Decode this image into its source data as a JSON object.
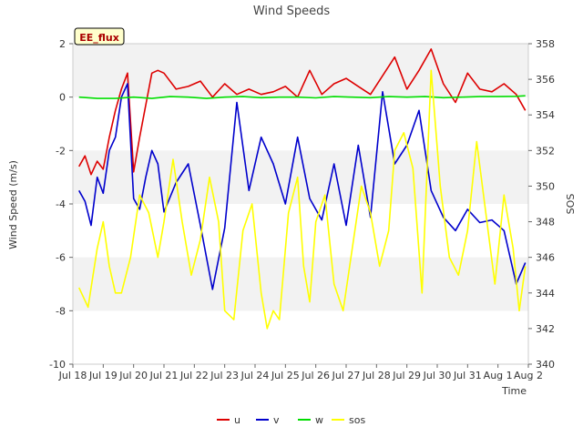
{
  "chart_data": {
    "type": "line",
    "title": "Wind Speeds",
    "badge": "EE_flux",
    "xlabel": "Time",
    "ylabel": "Wind Speed (m/s)",
    "y2label": "SOS",
    "xlim": [
      18,
      33
    ],
    "ylim": [
      -10,
      2
    ],
    "y2lim": [
      340,
      358
    ],
    "xticks": [
      18,
      19,
      20,
      21,
      22,
      23,
      24,
      25,
      26,
      27,
      28,
      29,
      30,
      31,
      32,
      33
    ],
    "xtick_labels": [
      "Jul 18",
      "Jul 19",
      "Jul 20",
      "Jul 21",
      "Jul 22",
      "Jul 23",
      "Jul 24",
      "Jul 25",
      "Jul 26",
      "Jul 27",
      "Jul 28",
      "Jul 29",
      "Jul 30",
      "Jul 31",
      "Aug 1",
      "Aug 2"
    ],
    "yticks": [
      -10,
      -8,
      -6,
      -4,
      -2,
      0,
      2
    ],
    "ytick_labels": [
      "-10",
      "-8",
      "-6",
      "-4",
      "-2",
      "0",
      "2"
    ],
    "y2ticks": [
      340,
      342,
      344,
      346,
      348,
      350,
      352,
      354,
      356,
      358
    ],
    "y2tick_labels": [
      "340",
      "342",
      "344",
      "346",
      "348",
      "350",
      "352",
      "354",
      "356",
      "358"
    ],
    "bands": [
      [
        -8,
        -6
      ],
      [
        -4,
        -2
      ],
      [
        0,
        2
      ]
    ],
    "series": [
      {
        "name": "u",
        "color": "#dd0000",
        "axis": "left",
        "x": [
          18.2,
          18.4,
          18.6,
          18.8,
          19.0,
          19.2,
          19.4,
          19.6,
          19.8,
          20.0,
          20.2,
          20.4,
          20.6,
          20.8,
          21.0,
          21.4,
          21.8,
          22.2,
          22.6,
          23.0,
          23.4,
          23.8,
          24.2,
          24.6,
          25.0,
          25.4,
          25.8,
          26.2,
          26.6,
          27.0,
          27.4,
          27.8,
          28.2,
          28.6,
          29.0,
          29.4,
          29.8,
          30.2,
          30.6,
          31.0,
          31.4,
          31.8,
          32.2,
          32.6,
          32.9
        ],
        "values": [
          -2.6,
          -2.2,
          -2.9,
          -2.4,
          -2.7,
          -1.5,
          -0.5,
          0.3,
          0.9,
          -2.8,
          -1.5,
          -0.3,
          0.9,
          1.0,
          0.9,
          0.3,
          0.4,
          0.6,
          0.0,
          0.5,
          0.1,
          0.3,
          0.1,
          0.2,
          0.4,
          0.0,
          1.0,
          0.1,
          0.5,
          0.7,
          0.4,
          0.1,
          0.8,
          1.5,
          0.3,
          1.0,
          1.8,
          0.5,
          -0.2,
          0.9,
          0.3,
          0.2,
          0.5,
          0.1,
          -0.5
        ]
      },
      {
        "name": "v",
        "color": "#0000cc",
        "axis": "left",
        "x": [
          18.2,
          18.4,
          18.6,
          18.8,
          19.0,
          19.2,
          19.4,
          19.6,
          19.8,
          20.0,
          20.2,
          20.4,
          20.6,
          20.8,
          21.0,
          21.4,
          21.8,
          22.2,
          22.6,
          23.0,
          23.4,
          23.8,
          24.2,
          24.6,
          25.0,
          25.4,
          25.8,
          26.2,
          26.6,
          27.0,
          27.4,
          27.8,
          28.2,
          28.6,
          29.0,
          29.4,
          29.8,
          30.2,
          30.6,
          31.0,
          31.4,
          31.8,
          32.2,
          32.6,
          32.9
        ],
        "values": [
          -3.5,
          -3.9,
          -4.8,
          -3.0,
          -3.6,
          -2.0,
          -1.5,
          0.0,
          0.5,
          -3.8,
          -4.2,
          -3.0,
          -2.0,
          -2.5,
          -4.3,
          -3.2,
          -2.5,
          -4.8,
          -7.2,
          -4.9,
          -0.2,
          -3.5,
          -1.5,
          -2.5,
          -4.0,
          -1.5,
          -3.8,
          -4.6,
          -2.5,
          -4.8,
          -1.8,
          -4.5,
          0.2,
          -2.5,
          -1.8,
          -0.5,
          -3.5,
          -4.5,
          -5.0,
          -4.2,
          -4.7,
          -4.6,
          -5.0,
          -7.0,
          -6.2
        ]
      },
      {
        "name": "w",
        "color": "#00dd00",
        "axis": "left",
        "x": [
          18.2,
          18.8,
          19.4,
          20.0,
          20.6,
          21.2,
          21.8,
          22.4,
          23.0,
          23.6,
          24.2,
          24.8,
          25.4,
          26.0,
          26.6,
          27.2,
          27.8,
          28.4,
          29.0,
          29.6,
          30.2,
          30.8,
          31.4,
          32.0,
          32.6,
          32.9
        ],
        "values": [
          0.0,
          -0.05,
          -0.05,
          0.0,
          -0.05,
          0.02,
          0.0,
          -0.05,
          0.0,
          0.02,
          -0.02,
          0.0,
          0.0,
          -0.03,
          0.02,
          0.0,
          -0.02,
          0.02,
          0.0,
          0.02,
          -0.02,
          0.0,
          0.02,
          0.02,
          0.03,
          0.05
        ]
      },
      {
        "name": "sos",
        "color": "#ffff00",
        "axis": "right",
        "x": [
          18.2,
          18.5,
          18.8,
          19.0,
          19.2,
          19.4,
          19.6,
          19.9,
          20.2,
          20.5,
          20.8,
          21.0,
          21.3,
          21.6,
          21.9,
          22.2,
          22.5,
          22.8,
          23.0,
          23.3,
          23.6,
          23.9,
          24.2,
          24.4,
          24.6,
          24.8,
          25.1,
          25.4,
          25.6,
          25.8,
          26.0,
          26.3,
          26.6,
          26.9,
          27.2,
          27.5,
          27.8,
          28.1,
          28.4,
          28.6,
          28.9,
          29.2,
          29.5,
          29.8,
          30.1,
          30.4,
          30.7,
          31.0,
          31.3,
          31.6,
          31.9,
          32.2,
          32.5,
          32.7,
          32.9
        ],
        "values": [
          344.3,
          343.2,
          346.5,
          348.0,
          345.5,
          344.0,
          344.0,
          346.0,
          349.5,
          348.5,
          346.0,
          348.0,
          351.5,
          348.0,
          345.0,
          347.0,
          350.5,
          348.0,
          343.0,
          342.5,
          347.5,
          349.0,
          344.0,
          342.0,
          343.0,
          342.5,
          348.5,
          350.5,
          345.5,
          343.5,
          348.0,
          349.5,
          344.5,
          343.0,
          346.5,
          350.0,
          348.5,
          345.5,
          347.5,
          352.0,
          353.0,
          351.0,
          344.0,
          356.5,
          350.0,
          346.0,
          345.0,
          347.5,
          352.5,
          348.5,
          344.5,
          349.5,
          346.5,
          343.0,
          345.5
        ]
      }
    ]
  }
}
